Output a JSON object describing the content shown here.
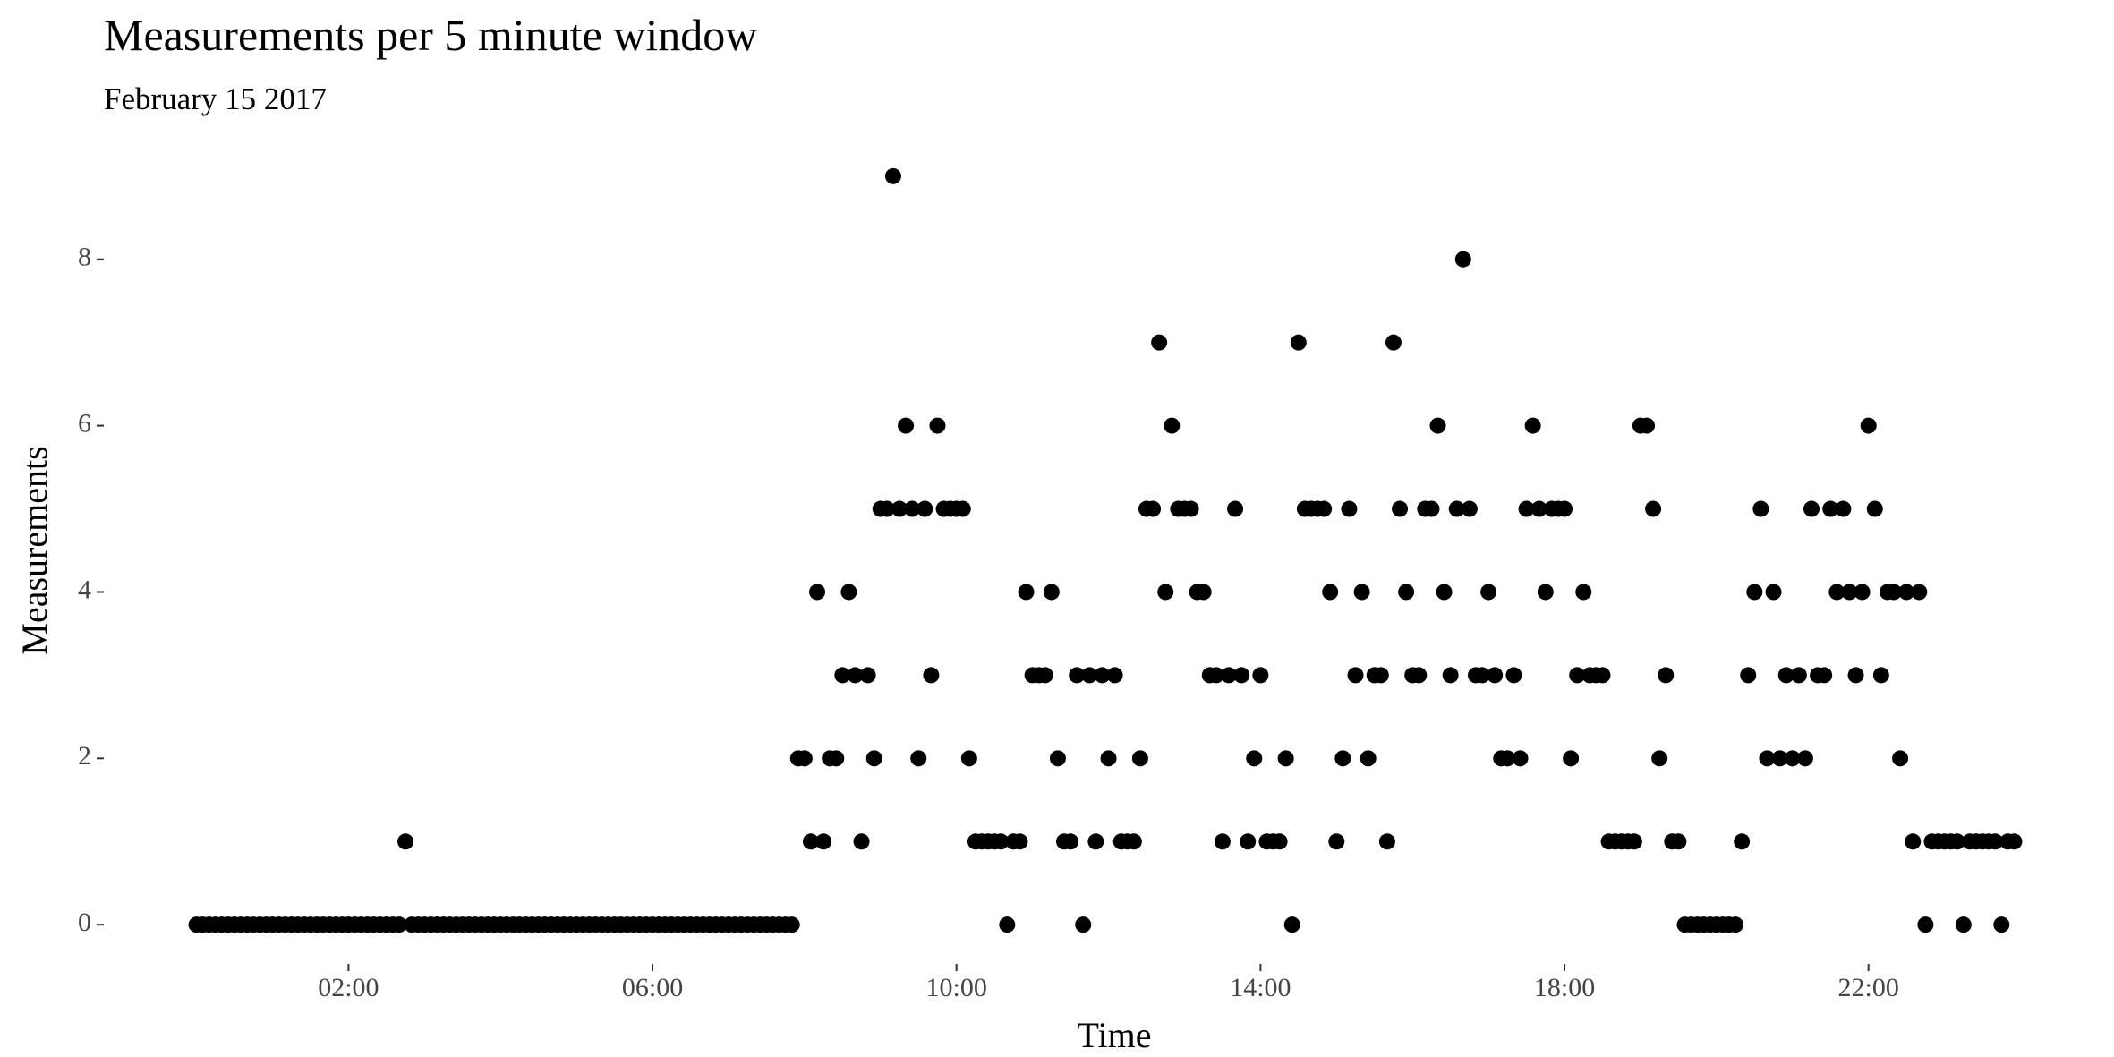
{
  "chart_data": {
    "type": "scatter",
    "title": "Measurements per 5 minute window",
    "subtitle": "February 15 2017",
    "x_label": "Time",
    "y_label": "Measurements",
    "color": "#000000",
    "x": [
      0,
      5,
      10,
      15,
      20,
      25,
      30,
      35,
      40,
      45,
      50,
      55,
      60,
      65,
      70,
      75,
      80,
      85,
      90,
      95,
      100,
      105,
      110,
      115,
      120,
      125,
      130,
      135,
      140,
      145,
      150,
      155,
      160,
      165,
      170,
      175,
      180,
      185,
      190,
      195,
      200,
      205,
      210,
      215,
      220,
      225,
      230,
      235,
      240,
      245,
      250,
      255,
      260,
      265,
      270,
      275,
      280,
      285,
      290,
      295,
      300,
      305,
      310,
      315,
      320,
      325,
      330,
      335,
      340,
      345,
      350,
      355,
      360,
      365,
      370,
      375,
      380,
      385,
      390,
      395,
      400,
      405,
      410,
      415,
      420,
      425,
      430,
      435,
      440,
      445,
      450,
      455,
      460,
      465,
      470,
      475,
      480,
      485,
      490,
      495,
      500,
      505,
      510,
      515,
      520,
      525,
      530,
      535,
      540,
      545,
      550,
      555,
      560,
      565,
      570,
      575,
      580,
      585,
      590,
      595,
      600,
      605,
      610,
      615,
      620,
      625,
      630,
      635,
      640,
      645,
      650,
      655,
      660,
      665,
      670,
      675,
      680,
      685,
      690,
      695,
      700,
      705,
      710,
      715,
      720,
      725,
      730,
      735,
      740,
      745,
      750,
      755,
      760,
      765,
      770,
      775,
      780,
      785,
      790,
      795,
      800,
      805,
      810,
      815,
      820,
      825,
      830,
      835,
      840,
      845,
      850,
      855,
      860,
      865,
      870,
      875,
      880,
      885,
      890,
      895,
      900,
      905,
      910,
      915,
      920,
      925,
      930,
      935,
      940,
      945,
      950,
      955,
      960,
      965,
      970,
      975,
      980,
      985,
      990,
      995,
      1000,
      1005,
      1010,
      1015,
      1020,
      1025,
      1030,
      1035,
      1040,
      1045,
      1050,
      1055,
      1060,
      1065,
      1070,
      1075,
      1080,
      1085,
      1090,
      1095,
      1100,
      1105,
      1110,
      1115,
      1120,
      1125,
      1130,
      1135,
      1140,
      1145,
      1150,
      1155,
      1160,
      1165,
      1170,
      1175,
      1180,
      1185,
      1190,
      1195,
      1200,
      1205,
      1210,
      1215,
      1220,
      1225,
      1230,
      1235,
      1240,
      1245,
      1250,
      1255,
      1260,
      1265,
      1270,
      1275,
      1280,
      1285,
      1290,
      1295,
      1300,
      1305,
      1310,
      1315,
      1320,
      1325,
      1330,
      1335,
      1340,
      1345,
      1350,
      1355,
      1360,
      1365,
      1370,
      1375,
      1380,
      1385,
      1390,
      1395,
      1400,
      1405,
      1410,
      1415,
      1420,
      1425,
      1430,
      1435
    ],
    "values": [
      0,
      0,
      0,
      0,
      0,
      0,
      0,
      0,
      0,
      0,
      0,
      0,
      0,
      0,
      0,
      0,
      0,
      0,
      0,
      0,
      0,
      0,
      0,
      0,
      0,
      0,
      0,
      0,
      0,
      0,
      0,
      0,
      0,
      1,
      0,
      0,
      0,
      0,
      0,
      0,
      0,
      0,
      0,
      0,
      0,
      0,
      0,
      0,
      0,
      0,
      0,
      0,
      0,
      0,
      0,
      0,
      0,
      0,
      0,
      0,
      0,
      0,
      0,
      0,
      0,
      0,
      0,
      0,
      0,
      0,
      0,
      0,
      0,
      0,
      0,
      0,
      0,
      0,
      0,
      0,
      0,
      0,
      0,
      0,
      0,
      0,
      0,
      0,
      0,
      0,
      0,
      0,
      0,
      0,
      0,
      2,
      2,
      1,
      4,
      1,
      2,
      2,
      3,
      4,
      3,
      1,
      3,
      2,
      5,
      5,
      9,
      5,
      6,
      5,
      2,
      5,
      3,
      6,
      5,
      5,
      5,
      5,
      2,
      1,
      1,
      1,
      1,
      1,
      0,
      1,
      1,
      4,
      3,
      3,
      3,
      4,
      2,
      1,
      1,
      3,
      0,
      3,
      1,
      3,
      2,
      3,
      1,
      1,
      1,
      2,
      5,
      5,
      7,
      4,
      6,
      5,
      5,
      5,
      4,
      4,
      3,
      3,
      1,
      3,
      5,
      3,
      1,
      2,
      3,
      1,
      1,
      1,
      2,
      0,
      7,
      5,
      5,
      5,
      5,
      4,
      1,
      2,
      5,
      3,
      4,
      2,
      3,
      3,
      1,
      7,
      5,
      4,
      3,
      3,
      5,
      5,
      6,
      4,
      3,
      5,
      8,
      5,
      3,
      3,
      4,
      3,
      2,
      2,
      3,
      2,
      5,
      6,
      5,
      4,
      5,
      5,
      5,
      2,
      3,
      4,
      3,
      3,
      3,
      1,
      1,
      1,
      1,
      1,
      6,
      6,
      5,
      2,
      3,
      1,
      1,
      0,
      0,
      0,
      0,
      0,
      0,
      0,
      0,
      0,
      1,
      3,
      4,
      5,
      2,
      4,
      2,
      3,
      2,
      3,
      2,
      5,
      3,
      3,
      5,
      4,
      5,
      4,
      3,
      4,
      6,
      5,
      3,
      4,
      4,
      2,
      4,
      1,
      4,
      0,
      1,
      1,
      1,
      1,
      1,
      0,
      1,
      1,
      1,
      1,
      1,
      0,
      1,
      1
    ],
    "xlim": [
      -71.75,
      1506.75
    ],
    "ylim": [
      -0.45,
      9.45
    ],
    "xticks": [
      {
        "value": 120,
        "label": "02:00"
      },
      {
        "value": 360,
        "label": "06:00"
      },
      {
        "value": 600,
        "label": "10:00"
      },
      {
        "value": 840,
        "label": "14:00"
      },
      {
        "value": 1080,
        "label": "18:00"
      },
      {
        "value": 1320,
        "label": "22:00"
      }
    ],
    "yticks": [
      0,
      2,
      4,
      6,
      8
    ]
  }
}
